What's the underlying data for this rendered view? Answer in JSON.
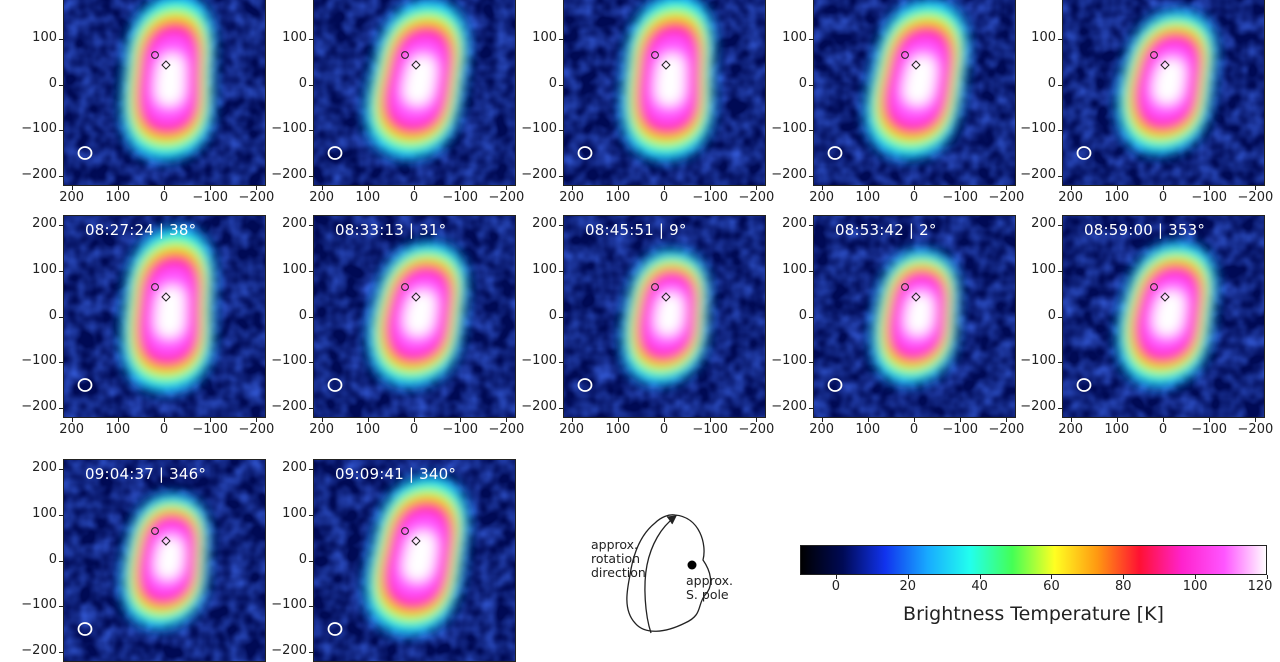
{
  "figure": {
    "panels": [
      {
        "stamp": "",
        "blob": "a"
      },
      {
        "stamp": "",
        "blob": "b"
      },
      {
        "stamp": "",
        "blob": "a"
      },
      {
        "stamp": "",
        "blob": "b"
      },
      {
        "stamp": "",
        "blob": "c"
      },
      {
        "stamp": "08:27:24 | 38°",
        "blob": "a"
      },
      {
        "stamp": "08:33:13 | 31°",
        "blob": "c"
      },
      {
        "stamp": "08:45:51 | 9°",
        "blob": "d"
      },
      {
        "stamp": "08:53:42 | 2°",
        "blob": "d"
      },
      {
        "stamp": "08:59:00 | 353°",
        "blob": "c"
      },
      {
        "stamp": "09:04:37 | 346°",
        "blob": "d"
      },
      {
        "stamp": "09:09:41 | 340°",
        "blob": "b"
      }
    ],
    "axis": {
      "xticks": [
        "200",
        "100",
        "0",
        "−100",
        "−200"
      ],
      "yticks": [
        "200",
        "100",
        "0",
        "−100",
        "−200"
      ]
    },
    "colorbar": {
      "title": "Brightness Temperature [K]",
      "ticks": [
        "0",
        "20",
        "40",
        "60",
        "80",
        "100",
        "120"
      ],
      "colors": [
        "#000000",
        "#000a55",
        "#1133ee",
        "#18aaff",
        "#22ffee",
        "#44ff55",
        "#ffff22",
        "#ff9911",
        "#ff1133",
        "#ff22cc",
        "#ff55ff",
        "#ffffff"
      ]
    },
    "sketch": {
      "rotation_label_lines": [
        "approx.",
        "rotation",
        "direction"
      ],
      "pole_label_lines": [
        "approx.",
        "S. pole"
      ]
    }
  }
}
